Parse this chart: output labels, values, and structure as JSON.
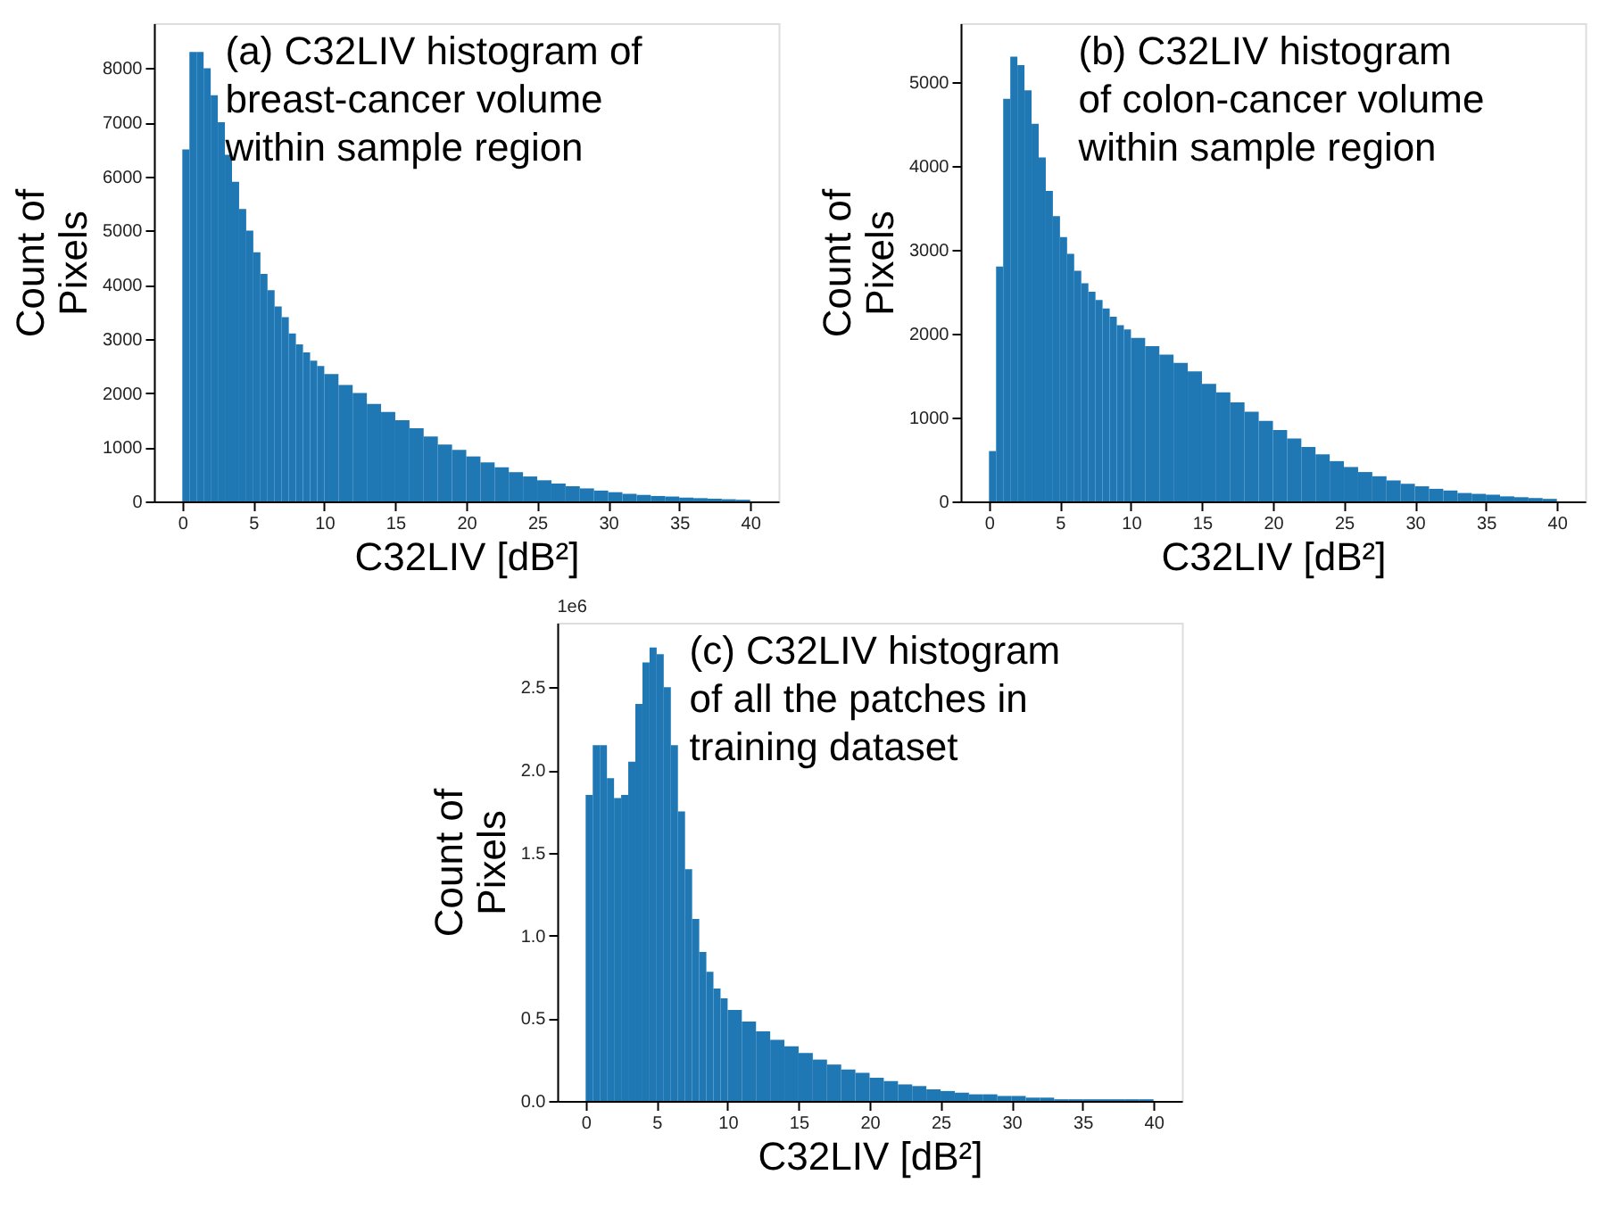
{
  "chart_data": [
    {
      "type": "histogram",
      "title": "(a) C32LIV histogram  of\nbreast-cancer volume\nwithin sample region",
      "xlabel": "C32LIV [dB²]",
      "ylabel": "Count of\nPixels",
      "color": "#1f77b4",
      "bins": [
        0,
        0.5,
        1,
        1.5,
        2,
        2.5,
        3,
        3.5,
        4,
        4.5,
        5,
        5.5,
        6,
        6.5,
        7,
        7.5,
        8,
        8.5,
        9,
        9.5,
        10,
        11,
        12,
        13,
        14,
        15,
        16,
        17,
        18,
        19,
        20,
        21,
        22,
        23,
        24,
        25,
        26,
        27,
        28,
        29,
        30,
        31,
        32,
        33,
        34,
        35,
        36,
        37,
        38,
        39,
        40
      ],
      "values": [
        6500,
        8300,
        8300,
        8000,
        7500,
        7000,
        6400,
        5900,
        5400,
        5000,
        4600,
        4200,
        3900,
        3600,
        3400,
        3100,
        2900,
        2750,
        2600,
        2500,
        2350,
        2150,
        2000,
        1800,
        1650,
        1500,
        1350,
        1200,
        1050,
        950,
        830,
        720,
        630,
        540,
        460,
        390,
        330,
        280,
        240,
        200,
        170,
        140,
        120,
        100,
        90,
        70,
        60,
        50,
        40,
        30
      ],
      "xlim": [
        -2,
        42
      ],
      "xticks": [
        0,
        5,
        10,
        15,
        20,
        25,
        30,
        35,
        40
      ],
      "ylim": [
        0,
        8830
      ],
      "yticks": [
        0,
        1000,
        2000,
        3000,
        4000,
        5000,
        6000,
        7000,
        8000
      ]
    },
    {
      "type": "histogram",
      "title": "(b) C32LIV histogram\nof colon-cancer volume\nwithin sample region",
      "xlabel": "C32LIV [dB²]",
      "ylabel": "Count of\nPixels",
      "color": "#1f77b4",
      "bins": [
        0,
        0.5,
        1,
        1.5,
        2,
        2.5,
        3,
        3.5,
        4,
        4.5,
        5,
        5.5,
        6,
        6.5,
        7,
        7.5,
        8,
        8.5,
        9,
        9.5,
        10,
        11,
        12,
        13,
        14,
        15,
        16,
        17,
        18,
        19,
        20,
        21,
        22,
        23,
        24,
        25,
        26,
        27,
        28,
        29,
        30,
        31,
        32,
        33,
        34,
        35,
        36,
        37,
        38,
        39,
        40
      ],
      "values": [
        600,
        2800,
        4800,
        5300,
        5200,
        4900,
        4500,
        4100,
        3700,
        3400,
        3150,
        2950,
        2750,
        2600,
        2500,
        2400,
        2300,
        2200,
        2100,
        2050,
        1950,
        1850,
        1750,
        1650,
        1550,
        1400,
        1300,
        1180,
        1070,
        960,
        850,
        750,
        650,
        560,
        480,
        410,
        350,
        300,
        250,
        210,
        180,
        150,
        130,
        100,
        90,
        80,
        60,
        50,
        40,
        30
      ],
      "xlim": [
        -2,
        42
      ],
      "xticks": [
        0,
        5,
        10,
        15,
        20,
        25,
        30,
        35,
        40
      ],
      "ylim": [
        0,
        5700
      ],
      "yticks": [
        0,
        1000,
        2000,
        3000,
        4000,
        5000
      ]
    },
    {
      "type": "histogram",
      "title": "(c) C32LIV histogram\nof all the patches in\ntraining dataset",
      "xlabel": "C32LIV [dB²]",
      "ylabel": "Count of\nPixels",
      "color": "#1f77b4",
      "annotations": [
        "1e6"
      ],
      "bins": [
        0,
        0.5,
        1,
        1.5,
        2,
        2.5,
        3,
        3.5,
        4,
        4.5,
        5,
        5.5,
        6,
        6.5,
        7,
        7.5,
        8,
        8.5,
        9,
        9.5,
        10,
        11,
        12,
        13,
        14,
        15,
        16,
        17,
        18,
        19,
        20,
        21,
        22,
        23,
        24,
        25,
        26,
        27,
        28,
        29,
        30,
        31,
        32,
        33,
        34,
        35,
        36,
        37,
        38,
        39,
        40
      ],
      "values": [
        1.85,
        2.15,
        2.15,
        1.95,
        1.83,
        1.85,
        2.05,
        2.4,
        2.65,
        2.74,
        2.7,
        2.5,
        2.15,
        1.75,
        1.4,
        1.1,
        0.9,
        0.78,
        0.68,
        0.62,
        0.55,
        0.48,
        0.42,
        0.37,
        0.33,
        0.29,
        0.25,
        0.22,
        0.19,
        0.17,
        0.14,
        0.12,
        0.1,
        0.09,
        0.07,
        0.06,
        0.05,
        0.04,
        0.04,
        0.03,
        0.03,
        0.02,
        0.02,
        0.01,
        0.01,
        0.01,
        0.01,
        0.01,
        0.01,
        0.01
      ],
      "xlim": [
        -2,
        42
      ],
      "xticks": [
        0,
        5,
        10,
        15,
        20,
        25,
        30,
        35,
        40
      ],
      "ylim": [
        0,
        2.89
      ],
      "yticks": [
        {
          "value": 0,
          "label": "0.0"
        },
        {
          "value": 0.5,
          "label": "0.5"
        },
        {
          "value": 1,
          "label": "1.0"
        },
        {
          "value": 1.5,
          "label": "1.5"
        },
        {
          "value": 2,
          "label": "2.0"
        },
        {
          "value": 2.5,
          "label": "2.5"
        }
      ]
    }
  ]
}
